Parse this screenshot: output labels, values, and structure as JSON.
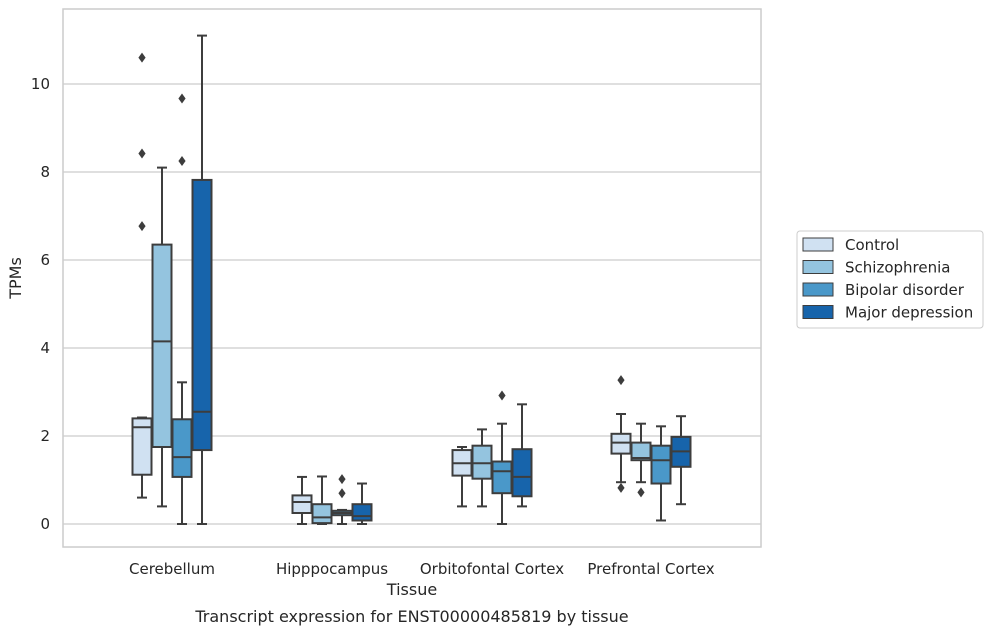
{
  "colors": {
    "Control": "#d0e1f2",
    "Schizophrenia": "#94c4df",
    "Bipolar disorder": "#4a98c9",
    "Major depression": "#1764ab",
    "box_edge": "#3d3d3d",
    "grid": "#cccccc",
    "frame": "#cccccc"
  },
  "chart_data": {
    "type": "box",
    "xlabel": "Tissue",
    "ylabel": "TPMs",
    "caption": "Transcript expression for ENST00000485819 by tissue",
    "ylim": [
      -0.5,
      11.6
    ],
    "yticks": [
      0,
      2,
      4,
      6,
      8,
      10
    ],
    "grid": "horizontal",
    "legend_position": "right",
    "categories": [
      "Cerebellum",
      "Hipppocampus",
      "Orbitofontal Cortex",
      "Prefrontal Cortex"
    ],
    "hue": [
      "Control",
      "Schizophrenia",
      "Bipolar disorder",
      "Major depression"
    ],
    "boxes": [
      {
        "category": "Cerebellum",
        "group": "Control",
        "whisker_low": 0.6,
        "q1": 1.12,
        "median": 2.2,
        "q3": 2.4,
        "whisker_high": 2.42,
        "outliers": [
          6.77,
          8.42,
          10.6
        ]
      },
      {
        "category": "Cerebellum",
        "group": "Schizophrenia",
        "whisker_low": 0.4,
        "q1": 1.75,
        "median": 4.15,
        "q3": 6.35,
        "whisker_high": 8.1,
        "outliers": []
      },
      {
        "category": "Cerebellum",
        "group": "Bipolar disorder",
        "whisker_low": 0.0,
        "q1": 1.07,
        "median": 1.52,
        "q3": 2.38,
        "whisker_high": 3.22,
        "outliers": [
          8.25,
          9.67
        ]
      },
      {
        "category": "Cerebellum",
        "group": "Major depression",
        "whisker_low": 0.0,
        "q1": 1.68,
        "median": 2.55,
        "q3": 7.82,
        "whisker_high": 11.1,
        "outliers": []
      },
      {
        "category": "Hipppocampus",
        "group": "Control",
        "whisker_low": 0.0,
        "q1": 0.25,
        "median": 0.5,
        "q3": 0.65,
        "whisker_high": 1.07,
        "outliers": []
      },
      {
        "category": "Hipppocampus",
        "group": "Schizophrenia",
        "whisker_low": 0.0,
        "q1": 0.02,
        "median": 0.15,
        "q3": 0.45,
        "whisker_high": 1.08,
        "outliers": []
      },
      {
        "category": "Hipppocampus",
        "group": "Bipolar disorder",
        "whisker_low": 0.0,
        "q1": 0.2,
        "median": 0.25,
        "q3": 0.3,
        "whisker_high": 0.32,
        "outliers": [
          0.7,
          1.02
        ]
      },
      {
        "category": "Hipppocampus",
        "group": "Major depression",
        "whisker_low": 0.0,
        "q1": 0.08,
        "median": 0.18,
        "q3": 0.45,
        "whisker_high": 0.92,
        "outliers": []
      },
      {
        "category": "Orbitofontal Cortex",
        "group": "Control",
        "whisker_low": 0.4,
        "q1": 1.1,
        "median": 1.38,
        "q3": 1.68,
        "whisker_high": 1.75,
        "outliers": []
      },
      {
        "category": "Orbitofontal Cortex",
        "group": "Schizophrenia",
        "whisker_low": 0.4,
        "q1": 1.03,
        "median": 1.38,
        "q3": 1.78,
        "whisker_high": 2.15,
        "outliers": []
      },
      {
        "category": "Orbitofontal Cortex",
        "group": "Bipolar disorder",
        "whisker_low": 0.0,
        "q1": 0.7,
        "median": 1.2,
        "q3": 1.42,
        "whisker_high": 2.28,
        "outliers": [
          2.92
        ]
      },
      {
        "category": "Orbitofontal Cortex",
        "group": "Major depression",
        "whisker_low": 0.4,
        "q1": 0.63,
        "median": 1.07,
        "q3": 1.7,
        "whisker_high": 2.72,
        "outliers": []
      },
      {
        "category": "Prefrontal Cortex",
        "group": "Control",
        "whisker_low": 0.95,
        "q1": 1.6,
        "median": 1.85,
        "q3": 2.05,
        "whisker_high": 2.5,
        "outliers": [
          0.82,
          3.27
        ]
      },
      {
        "category": "Prefrontal Cortex",
        "group": "Schizophrenia",
        "whisker_low": 0.95,
        "q1": 1.45,
        "median": 1.5,
        "q3": 1.85,
        "whisker_high": 2.28,
        "outliers": [
          0.72
        ]
      },
      {
        "category": "Prefrontal Cortex",
        "group": "Bipolar disorder",
        "whisker_low": 0.08,
        "q1": 0.92,
        "median": 1.45,
        "q3": 1.78,
        "whisker_high": 2.22,
        "outliers": []
      },
      {
        "category": "Prefrontal Cortex",
        "group": "Major depression",
        "whisker_low": 0.45,
        "q1": 1.3,
        "median": 1.65,
        "q3": 1.98,
        "whisker_high": 2.45,
        "outliers": []
      }
    ]
  }
}
